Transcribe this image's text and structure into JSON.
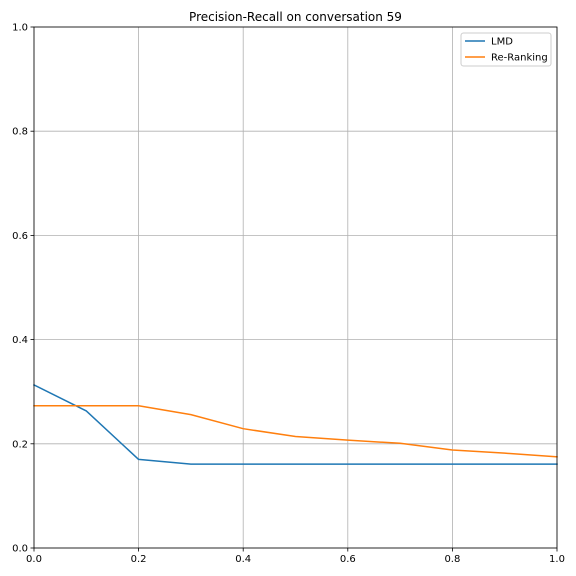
{
  "chart_data": {
    "type": "line",
    "title": "Precision-Recall on conversation 59",
    "xlabel": "",
    "ylabel": "",
    "xlim": [
      0.0,
      1.0
    ],
    "ylim": [
      0.0,
      1.0
    ],
    "xticks": [
      "0.0",
      "0.2",
      "0.4",
      "0.6",
      "0.8",
      "1.0"
    ],
    "yticks": [
      "0.0",
      "0.2",
      "0.4",
      "0.6",
      "0.8",
      "1.0"
    ],
    "grid": true,
    "legend_position": "top-right",
    "series": [
      {
        "name": "LMD",
        "color": "#1f77b4",
        "x": [
          0.0,
          0.1,
          0.2,
          0.3,
          0.4,
          0.5,
          0.6,
          0.7,
          0.8,
          0.9,
          1.0
        ],
        "y": [
          0.313,
          0.263,
          0.17,
          0.161,
          0.161,
          0.161,
          0.161,
          0.161,
          0.161,
          0.161,
          0.161
        ]
      },
      {
        "name": "Re-Ranking",
        "color": "#ff7f0e",
        "x": [
          0.0,
          0.1,
          0.2,
          0.3,
          0.4,
          0.5,
          0.6,
          0.7,
          0.8,
          0.9,
          1.0
        ],
        "y": [
          0.273,
          0.273,
          0.273,
          0.256,
          0.229,
          0.214,
          0.207,
          0.201,
          0.188,
          0.182,
          0.175
        ]
      }
    ]
  }
}
